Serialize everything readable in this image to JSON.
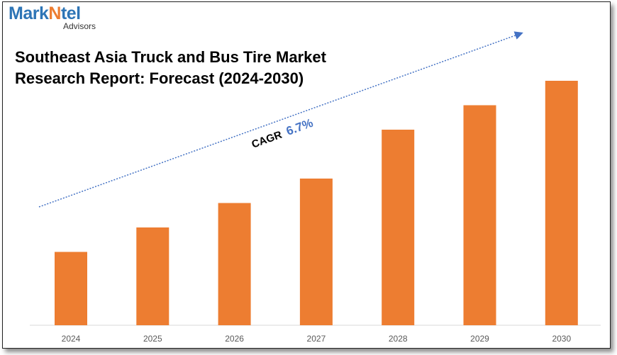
{
  "brand": {
    "part1": "MarkNtel",
    "sub": "Advisors"
  },
  "chart_data": {
    "type": "bar",
    "title": "Southeast Asia Truck and Bus Tire Market Research Report: Forecast (2024-2030)",
    "categories": [
      "2024",
      "2025",
      "2026",
      "2027",
      "2028",
      "2029",
      "2030"
    ],
    "values": [
      30,
      40,
      50,
      60,
      80,
      90,
      100
    ],
    "ylim": [
      0,
      100
    ],
    "xlabel": "",
    "ylabel": "",
    "bar_color": "#ed7d31",
    "annotation": {
      "label": "CAGR",
      "value": "6.7%",
      "value_color": "#4472c4"
    },
    "trend_color": "#4472c4",
    "grid": false,
    "legend": "none"
  }
}
